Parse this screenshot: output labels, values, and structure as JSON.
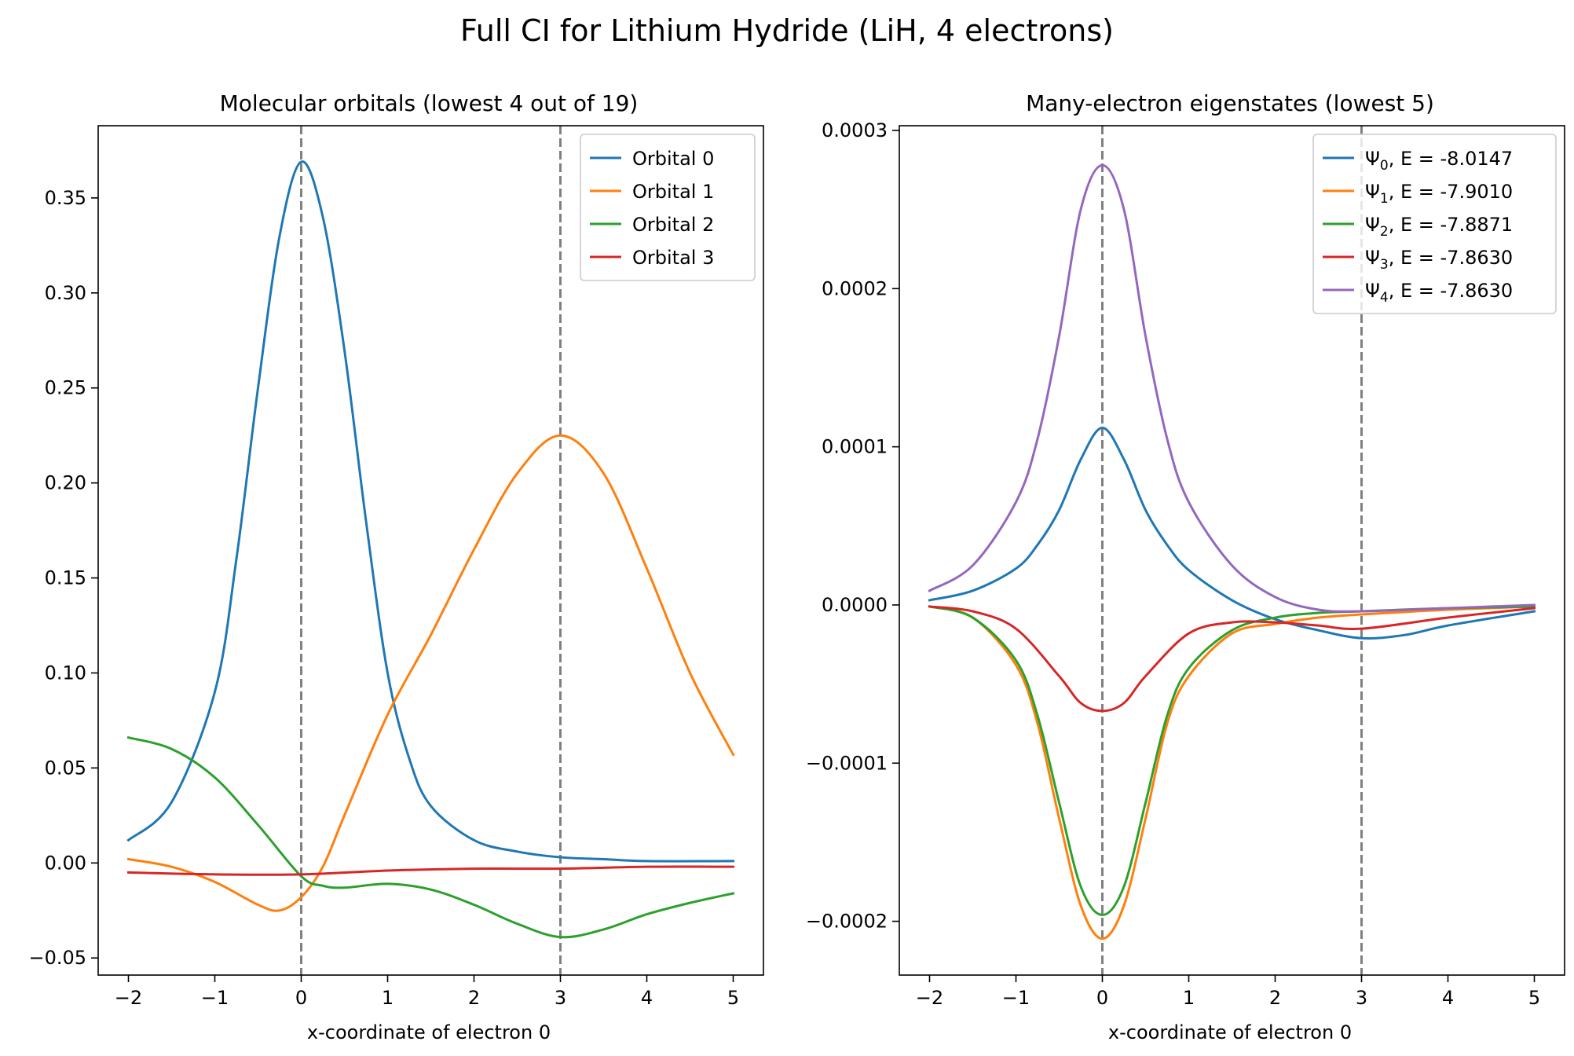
{
  "suptitle": "Full CI for Lithium Hydride (LiH, 4 electrons)",
  "colors": {
    "c0": "#1f77b4",
    "c1": "#ff7f0e",
    "c2": "#2ca02c",
    "c3": "#d62728",
    "c4": "#9467bd",
    "vline": "#808080"
  },
  "chart_data": [
    {
      "type": "line",
      "title": "Molecular orbitals (lowest 4 out of 19)",
      "xlabel": "x-coordinate of electron 0",
      "ylabel": "",
      "xlim": [
        -2.35,
        5.35
      ],
      "ylim": [
        -0.059,
        0.388
      ],
      "xticks": [
        -2,
        -1,
        0,
        1,
        2,
        3,
        4,
        5
      ],
      "xtick_labels": [
        "−2",
        "−1",
        "0",
        "1",
        "2",
        "3",
        "4",
        "5"
      ],
      "yticks": [
        -0.05,
        0.0,
        0.05,
        0.1,
        0.15,
        0.2,
        0.25,
        0.3,
        0.35
      ],
      "ytick_labels": [
        "−0.05",
        "0.00",
        "0.05",
        "0.10",
        "0.15",
        "0.20",
        "0.25",
        "0.30",
        "0.35"
      ],
      "vlines": [
        0,
        3
      ],
      "grid": false,
      "legend_position": "upper right",
      "series": [
        {
          "name": "Orbital 0",
          "color": "#1f77b4",
          "x": [
            -2,
            -1.5,
            -1,
            -0.75,
            -0.5,
            -0.25,
            0,
            0.25,
            0.5,
            0.75,
            1,
            1.25,
            1.5,
            2,
            2.5,
            3,
            3.5,
            4,
            5
          ],
          "y": [
            0.012,
            0.032,
            0.09,
            0.16,
            0.25,
            0.33,
            0.369,
            0.34,
            0.27,
            0.18,
            0.1,
            0.055,
            0.03,
            0.012,
            0.006,
            0.003,
            0.002,
            0.001,
            0.001
          ]
        },
        {
          "name": "Orbital 1",
          "color": "#ff7f0e",
          "x": [
            -2,
            -1.5,
            -1,
            -0.5,
            -0.25,
            0,
            0.25,
            0.5,
            1,
            1.5,
            2,
            2.5,
            3,
            3.5,
            4,
            4.5,
            5
          ],
          "y": [
            0.002,
            -0.002,
            -0.01,
            -0.022,
            -0.025,
            -0.018,
            -0.002,
            0.025,
            0.078,
            0.12,
            0.165,
            0.205,
            0.225,
            0.205,
            0.155,
            0.1,
            0.057
          ]
        },
        {
          "name": "Orbital 2",
          "color": "#2ca02c",
          "x": [
            -2,
            -1.5,
            -1,
            -0.5,
            0,
            0.25,
            0.5,
            1,
            1.5,
            2,
            2.5,
            3,
            3.5,
            4,
            4.5,
            5
          ],
          "y": [
            0.066,
            0.06,
            0.045,
            0.02,
            -0.007,
            -0.012,
            -0.013,
            -0.011,
            -0.014,
            -0.022,
            -0.032,
            -0.039,
            -0.035,
            -0.027,
            -0.021,
            -0.016
          ]
        },
        {
          "name": "Orbital 3",
          "color": "#d62728",
          "x": [
            -2,
            -1,
            0,
            1,
            2,
            3,
            4,
            5
          ],
          "y": [
            -0.005,
            -0.006,
            -0.006,
            -0.004,
            -0.003,
            -0.003,
            -0.002,
            -0.002
          ]
        }
      ]
    },
    {
      "type": "line",
      "title": "Many-electron eigenstates (lowest 5)",
      "xlabel": "x-coordinate of electron 0",
      "ylabel": "",
      "xlim": [
        -2.35,
        5.35
      ],
      "ylim": [
        -0.000234,
        0.000303
      ],
      "xticks": [
        -2,
        -1,
        0,
        1,
        2,
        3,
        4,
        5
      ],
      "xtick_labels": [
        "−2",
        "−1",
        "0",
        "1",
        "2",
        "3",
        "4",
        "5"
      ],
      "yticks": [
        -0.0002,
        -0.0001,
        0.0,
        0.0001,
        0.0002,
        0.0003
      ],
      "ytick_labels": [
        "−0.0002",
        "−0.0001",
        "0.0000",
        "0.0001",
        "0.0002",
        "0.0003"
      ],
      "vlines": [
        0,
        3
      ],
      "grid": false,
      "legend_position": "upper right",
      "series": [
        {
          "name": "Ψ₀, E = -8.0147",
          "psi": "Ψ",
          "sub": "0",
          "rest": ", E = -8.0147",
          "color": "#1f77b4",
          "x": [
            -2,
            -1.5,
            -1,
            -0.75,
            -0.5,
            -0.25,
            0,
            0.25,
            0.5,
            0.75,
            1,
            1.5,
            2,
            2.5,
            3,
            3.5,
            4,
            5
          ],
          "y": [
            3e-06,
            9e-06,
            2.3e-05,
            3.8e-05,
            6e-05,
            9.2e-05,
            0.000112,
            9.2e-05,
            6e-05,
            3.8e-05,
            2.2e-05,
            3e-06,
            -9e-06,
            -1.6e-05,
            -2.1e-05,
            -1.9e-05,
            -1.3e-05,
            -4e-06
          ]
        },
        {
          "name": "Ψ₁, E = -7.9010",
          "psi": "Ψ",
          "sub": "1",
          "rest": ", E = -7.9010",
          "color": "#ff7f0e",
          "x": [
            -2,
            -1.5,
            -1,
            -0.75,
            -0.5,
            -0.25,
            0,
            0.25,
            0.5,
            0.75,
            1,
            1.5,
            2,
            2.5,
            3,
            4,
            5
          ],
          "y": [
            -1e-06,
            -8e-06,
            -3.8e-05,
            -7.5e-05,
            -0.000135,
            -0.00019,
            -0.000211,
            -0.00019,
            -0.000135,
            -7.5e-05,
            -4.5e-05,
            -1.8e-05,
            -1.2e-05,
            -8e-06,
            -6e-06,
            -3e-06,
            -1e-06
          ]
        },
        {
          "name": "Ψ₂, E = -7.8871",
          "psi": "Ψ",
          "sub": "2",
          "rest": ", E = -7.8871",
          "color": "#2ca02c",
          "x": [
            -2,
            -1.5,
            -1,
            -0.75,
            -0.5,
            -0.25,
            0,
            0.25,
            0.5,
            0.75,
            1,
            1.5,
            2,
            2.5,
            3,
            4,
            5
          ],
          "y": [
            -1e-06,
            -8e-06,
            -3.5e-05,
            -7e-05,
            -0.000125,
            -0.000178,
            -0.000196,
            -0.000178,
            -0.000125,
            -7e-05,
            -4e-05,
            -1.6e-05,
            -8e-06,
            -5e-06,
            -4e-06,
            -2e-06,
            -1e-06
          ]
        },
        {
          "name": "Ψ₃, E = -7.8630",
          "psi": "Ψ",
          "sub": "3",
          "rest": ", E = -7.8630",
          "color": "#d62728",
          "x": [
            -2,
            -1.5,
            -1,
            -0.5,
            -0.25,
            0,
            0.25,
            0.5,
            1,
            1.5,
            2,
            2.5,
            3,
            4,
            5
          ],
          "y": [
            -1e-06,
            -4e-06,
            -1.5e-05,
            -4.5e-05,
            -6.2e-05,
            -6.7e-05,
            -6.2e-05,
            -4.5e-05,
            -1.8e-05,
            -1.1e-05,
            -1.1e-05,
            -1.3e-05,
            -1.5e-05,
            -8e-06,
            -2e-06
          ]
        },
        {
          "name": "Ψ₄, E = -7.8630",
          "psi": "Ψ",
          "sub": "4",
          "rest": ", E = -7.8630",
          "color": "#9467bd",
          "x": [
            -2,
            -1.5,
            -1,
            -0.75,
            -0.5,
            -0.25,
            0,
            0.25,
            0.5,
            0.75,
            1,
            1.5,
            2,
            2.5,
            3,
            4,
            5
          ],
          "y": [
            9e-06,
            2.5e-05,
            6.5e-05,
            0.000105,
            0.00017,
            0.00025,
            0.000278,
            0.00025,
            0.00017,
            0.000105,
            6.5e-05,
            2.5e-05,
            5e-06,
            -3e-06,
            -4e-06,
            -2e-06,
            0.0
          ]
        }
      ]
    }
  ]
}
